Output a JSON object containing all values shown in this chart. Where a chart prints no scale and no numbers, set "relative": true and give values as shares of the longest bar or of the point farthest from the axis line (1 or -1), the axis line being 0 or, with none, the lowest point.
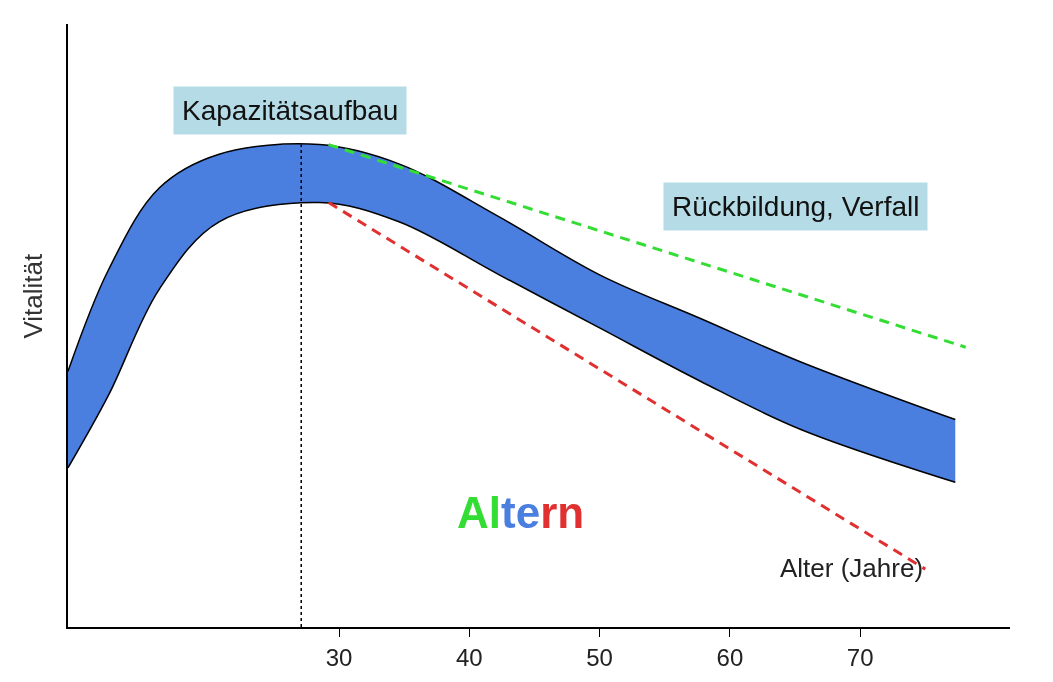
{
  "chart_data": {
    "type": "line",
    "relative": true,
    "xlabel": "Alter (Jahre)",
    "ylabel": "Vitalität",
    "xlim": [
      9.2,
      81.5
    ],
    "xticks": [
      30,
      40,
      50,
      60,
      70
    ],
    "annotations": [
      "Kapazitätsaufbau",
      "Rückbildung, Verfall",
      "Altern"
    ],
    "ref_lines": [
      {
        "axis": "x",
        "value": 27.1,
        "color": "#000000",
        "line_style": "dotted"
      }
    ],
    "series": [
      {
        "color": "#000000",
        "x": [
          9.2,
          12.3,
          16.2,
          20.8,
          28.5,
          34.6,
          42.3,
          50,
          57.7,
          65.4,
          77.3
        ],
        "values": [
          0.33,
          0.48,
          0.7,
          0.84,
          0.88,
          0.84,
          0.73,
          0.62,
          0.51,
          0.41,
          0.3
        ]
      },
      {
        "type": "area",
        "color": "#4a7fe0",
        "x": [
          9.2,
          12.3,
          16.2,
          20.8,
          28.5,
          34.6,
          42.3,
          50,
          57.7,
          65.4,
          77.3
        ],
        "values": [
          0.53,
          0.74,
          0.91,
          0.98,
          1.0,
          0.96,
          0.85,
          0.73,
          0.64,
          0.55,
          0.43
        ]
      },
      {
        "type": "line",
        "color": "#33dd33",
        "line_style": "dashed",
        "x": [
          29.2,
          78.1
        ],
        "values": [
          1.0,
          0.58
        ]
      },
      {
        "type": "line",
        "color": "#e03030",
        "line_style": "dashed",
        "x": [
          29.2,
          75.0
        ],
        "values": [
          0.88,
          0.12
        ]
      }
    ]
  }
}
